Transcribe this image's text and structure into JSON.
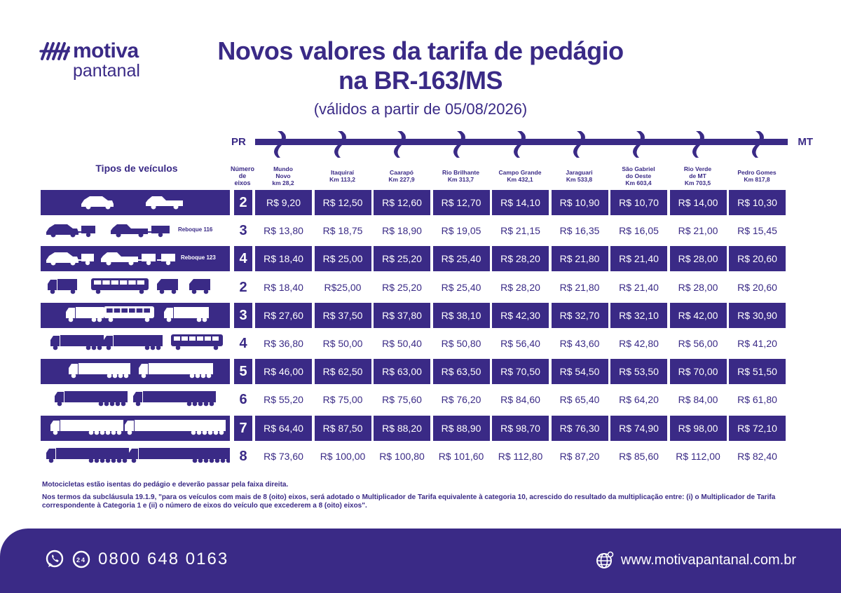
{
  "brand": {
    "line1": "motiva",
    "line2": "pantanal",
    "color": "#3a2a86"
  },
  "header": {
    "title_line1": "Novos valores da tarifa de pedágio",
    "title_line2": "na BR-163/MS",
    "subtitle": "(válidos a partir de 05/08/2026)"
  },
  "route": {
    "start": "PR",
    "end": "MT"
  },
  "table": {
    "vehicle_types_label": "Tipos de veículos",
    "axles_label": [
      "Número",
      "de",
      "eixos"
    ],
    "plazas": [
      {
        "name": [
          "Mundo",
          "Novo"
        ],
        "km": "km 28,2"
      },
      {
        "name": [
          "Itaquiraí"
        ],
        "km": "Km 113,2"
      },
      {
        "name": [
          "Caarapó"
        ],
        "km": "Km 227,9"
      },
      {
        "name": [
          "Rio Brilhante"
        ],
        "km": "Km 313,7"
      },
      {
        "name": [
          "Campo Grande"
        ],
        "km": "Km 432,1"
      },
      {
        "name": [
          "Jaraguari"
        ],
        "km": "Km 533,8"
      },
      {
        "name": [
          "São Gabriel",
          "do Oeste"
        ],
        "km": "Km 603,4"
      },
      {
        "name": [
          "Rio Verde",
          "de MT"
        ],
        "km": "Km 703,5"
      },
      {
        "name": [
          "Pedro Gomes"
        ],
        "km": "Km 817,8"
      }
    ],
    "rows": [
      {
        "axles": "2",
        "vehicles": "car-pickup",
        "prices": [
          "R$ 9,20",
          "R$ 12,50",
          "R$ 12,60",
          "R$ 12,70",
          "R$ 14,10",
          "R$ 10,90",
          "R$ 10,70",
          "R$ 14,00",
          "R$ 10,30"
        ]
      },
      {
        "axles": "3",
        "vehicles": "car-trailer",
        "label": "Reboque 116",
        "prices": [
          "R$ 13,80",
          "R$ 18,75",
          "R$ 18,90",
          "R$ 19,05",
          "R$ 21,15",
          "R$ 16,35",
          "R$ 16,05",
          "R$ 21,00",
          "R$ 15,45"
        ]
      },
      {
        "axles": "4",
        "vehicles": "car-double-trailer",
        "label": "Reboque 123",
        "prices": [
          "R$ 18,40",
          "R$ 25,00",
          "R$ 25,20",
          "R$ 25,40",
          "R$ 28,20",
          "R$ 21,80",
          "R$ 21,40",
          "R$ 28,00",
          "R$ 20,60"
        ]
      },
      {
        "axles": "2",
        "vehicles": "truck-bus-van",
        "prices": [
          "R$ 18,40",
          "R$25,00",
          "R$ 25,20",
          "R$ 25,40",
          "R$ 28,20",
          "R$ 21,80",
          "R$ 21,40",
          "R$ 28,00",
          "R$ 20,60"
        ]
      },
      {
        "axles": "3",
        "vehicles": "truck-bus-3",
        "prices": [
          "R$ 27,60",
          "R$ 37,50",
          "R$ 37,80",
          "R$ 38,10",
          "R$ 42,30",
          "R$ 32,70",
          "R$ 32,10",
          "R$ 42,00",
          "R$ 30,90"
        ]
      },
      {
        "axles": "4",
        "vehicles": "truck-bus-4",
        "prices": [
          "R$ 36,80",
          "R$ 50,00",
          "R$ 50,40",
          "R$ 50,80",
          "R$ 56,40",
          "R$ 43,60",
          "R$ 42,80",
          "R$ 56,00",
          "R$ 41,20"
        ]
      },
      {
        "axles": "5",
        "vehicles": "semi-5",
        "prices": [
          "R$ 46,00",
          "R$ 62,50",
          "R$ 63,00",
          "R$ 63,50",
          "R$ 70,50",
          "R$ 54,50",
          "R$ 53,50",
          "R$ 70,00",
          "R$ 51,50"
        ]
      },
      {
        "axles": "6",
        "vehicles": "semi-6",
        "prices": [
          "R$ 55,20",
          "R$ 75,00",
          "R$ 75,60",
          "R$ 76,20",
          "R$ 84,60",
          "R$ 65,40",
          "R$ 64,20",
          "R$ 84,00",
          "R$ 61,80"
        ]
      },
      {
        "axles": "7",
        "vehicles": "semi-7",
        "prices": [
          "R$ 64,40",
          "R$ 87,50",
          "R$ 88,20",
          "R$ 88,90",
          "R$ 98,70",
          "R$ 76,30",
          "R$ 74,90",
          "R$ 98,00",
          "R$ 72,10"
        ]
      },
      {
        "axles": "8",
        "vehicles": "semi-8",
        "prices": [
          "R$ 73,60",
          "R$ 100,00",
          "R$ 100,80",
          "R$ 101,60",
          "R$ 112,80",
          "R$ 87,20",
          "R$ 85,60",
          "R$ 112,00",
          "R$ 82,40"
        ]
      }
    ]
  },
  "notes": {
    "line1": "Motocicletas estão isentas do pedágio e deverão passar pela faixa direita.",
    "line2": "Nos termos da subcláusula 19.1.9, \"para os veículos com mais de 8 (oito) eixos, será adotado o Multiplicador de Tarifa equivalente à categoria 10, acrescido do resultado da multiplicação entre: (i) o Multiplicador de Tarifa correspondente à Categoria 1 e (ii) o número de eixos do veículo que excederem a 8 (oito) eixos\"."
  },
  "footer": {
    "phone": "0800 648 0163",
    "phone_badge": "24",
    "website": "www.motivapantanal.com.br",
    "icons": [
      "whatsapp-icon",
      "phone-24h-icon",
      "globe-icon"
    ]
  }
}
